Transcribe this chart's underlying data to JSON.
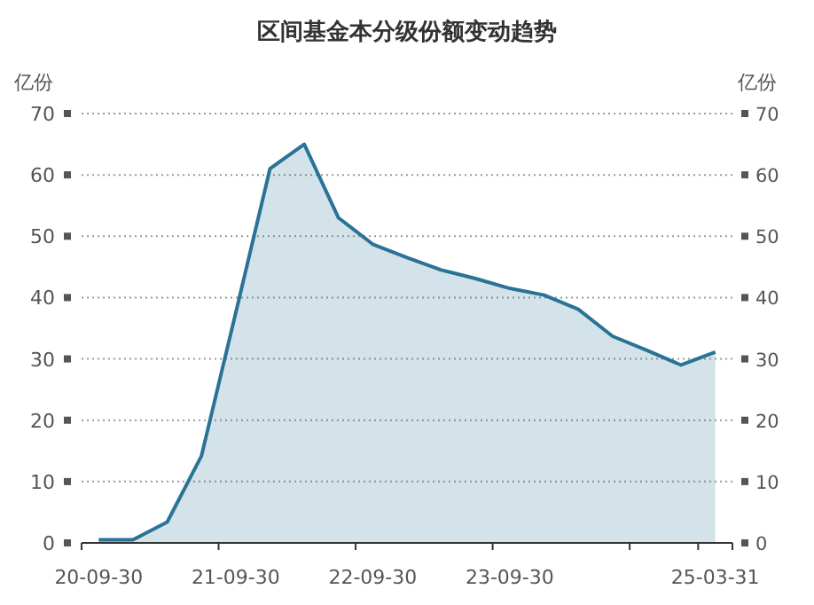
{
  "chart_data": {
    "type": "area",
    "title": "区间基金本分级份额变动趋势",
    "ylabel": "亿份",
    "y2label": "亿份",
    "categories": [
      "20-09-30",
      null,
      null,
      null,
      "21-09-30",
      null,
      null,
      null,
      "22-09-30",
      null,
      null,
      null,
      "23-09-30",
      null,
      null,
      null,
      null,
      null,
      "25-03-31"
    ],
    "series": [
      {
        "color": "#2a7396",
        "values": [
          0.5,
          0.5,
          3.4,
          14.2,
          37.5,
          61,
          65,
          53,
          48.7,
          46.5,
          44.5,
          43.1,
          41.5,
          40.4,
          38.1,
          33.7,
          31.4,
          29,
          31.1
        ]
      }
    ],
    "ylim": [
      0,
      70
    ],
    "yticks": [
      0,
      10,
      20,
      30,
      40,
      50,
      60,
      70
    ],
    "y2lim": [
      0,
      70
    ],
    "y2ticks": [
      0,
      10,
      20,
      30,
      40,
      50,
      60,
      70
    ],
    "grid": "y"
  }
}
